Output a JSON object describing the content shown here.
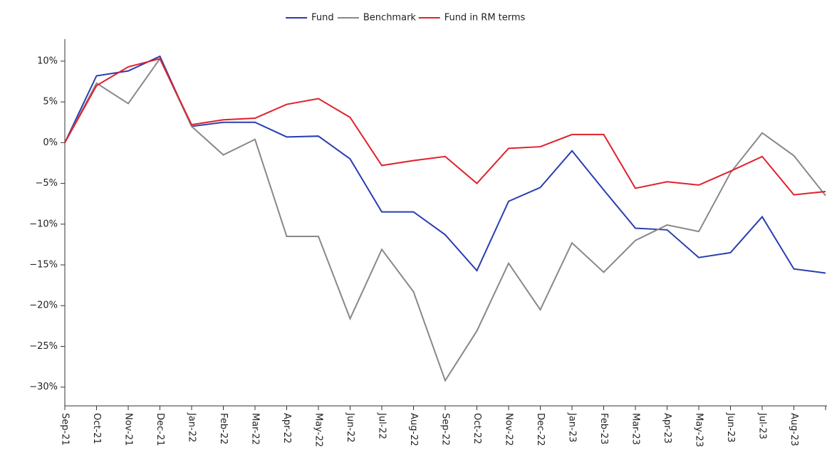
{
  "chart_data": {
    "type": "line",
    "categories": [
      "Sep-21",
      "Oct-21",
      "Nov-21",
      "Dec-21",
      "Jan-22",
      "Feb-22",
      "Mar-22",
      "Apr-22",
      "May-22",
      "Jun-22",
      "Jul-22",
      "Aug-22",
      "Sep-22",
      "Oct-22",
      "Nov-22",
      "Dec-22",
      "Jan-23",
      "Feb-23",
      "Mar-23",
      "Apr-23",
      "May-23",
      "Jun-23",
      "Jul-23",
      "Aug-23",
      null
    ],
    "series": [
      {
        "name": "Fund",
        "color": "#2a3db0",
        "values": [
          0,
          8.2,
          8.8,
          10.6,
          2.0,
          2.5,
          2.5,
          0.7,
          0.8,
          -2.0,
          -8.5,
          -8.5,
          -11.3,
          -15.7,
          -7.2,
          -5.5,
          -1.0,
          -5.8,
          -10.5,
          -10.7,
          -14.1,
          -13.5,
          -9.1,
          -15.5,
          -16.0
        ]
      },
      {
        "name": "Benchmark",
        "color": "#888888",
        "values": [
          0,
          7.3,
          4.8,
          10.3,
          2.0,
          -1.5,
          0.4,
          -11.5,
          -11.5,
          -21.6,
          -13.1,
          -18.3,
          -29.2,
          -23.1,
          -14.8,
          -20.5,
          -12.3,
          -15.9,
          -12.0,
          -10.1,
          -10.9,
          -3.7,
          1.2,
          -1.6,
          -6.5
        ]
      },
      {
        "name": "Fund in RM terms",
        "color": "#e0202a",
        "values": [
          0,
          7.0,
          9.3,
          10.3,
          2.2,
          2.8,
          3.0,
          4.7,
          5.4,
          3.1,
          -2.8,
          -2.2,
          -1.7,
          -5.0,
          -0.7,
          -0.5,
          1.0,
          1.0,
          -5.6,
          -4.8,
          -5.2,
          -3.5,
          -1.7,
          -6.4,
          -6.0
        ]
      }
    ],
    "ylim": [
      -32.3,
      12.7
    ],
    "yticks": [
      {
        "value": 10,
        "label": "10%"
      },
      {
        "value": 5,
        "label": "5%"
      },
      {
        "value": 0,
        "label": "0%"
      },
      {
        "value": -5,
        "label": "−5%"
      },
      {
        "value": -10,
        "label": "−10%"
      },
      {
        "value": -15,
        "label": "−15%"
      },
      {
        "value": -20,
        "label": "−20%"
      },
      {
        "value": -25,
        "label": "−25%"
      },
      {
        "value": -30,
        "label": "−30%"
      }
    ],
    "legend": "top"
  }
}
